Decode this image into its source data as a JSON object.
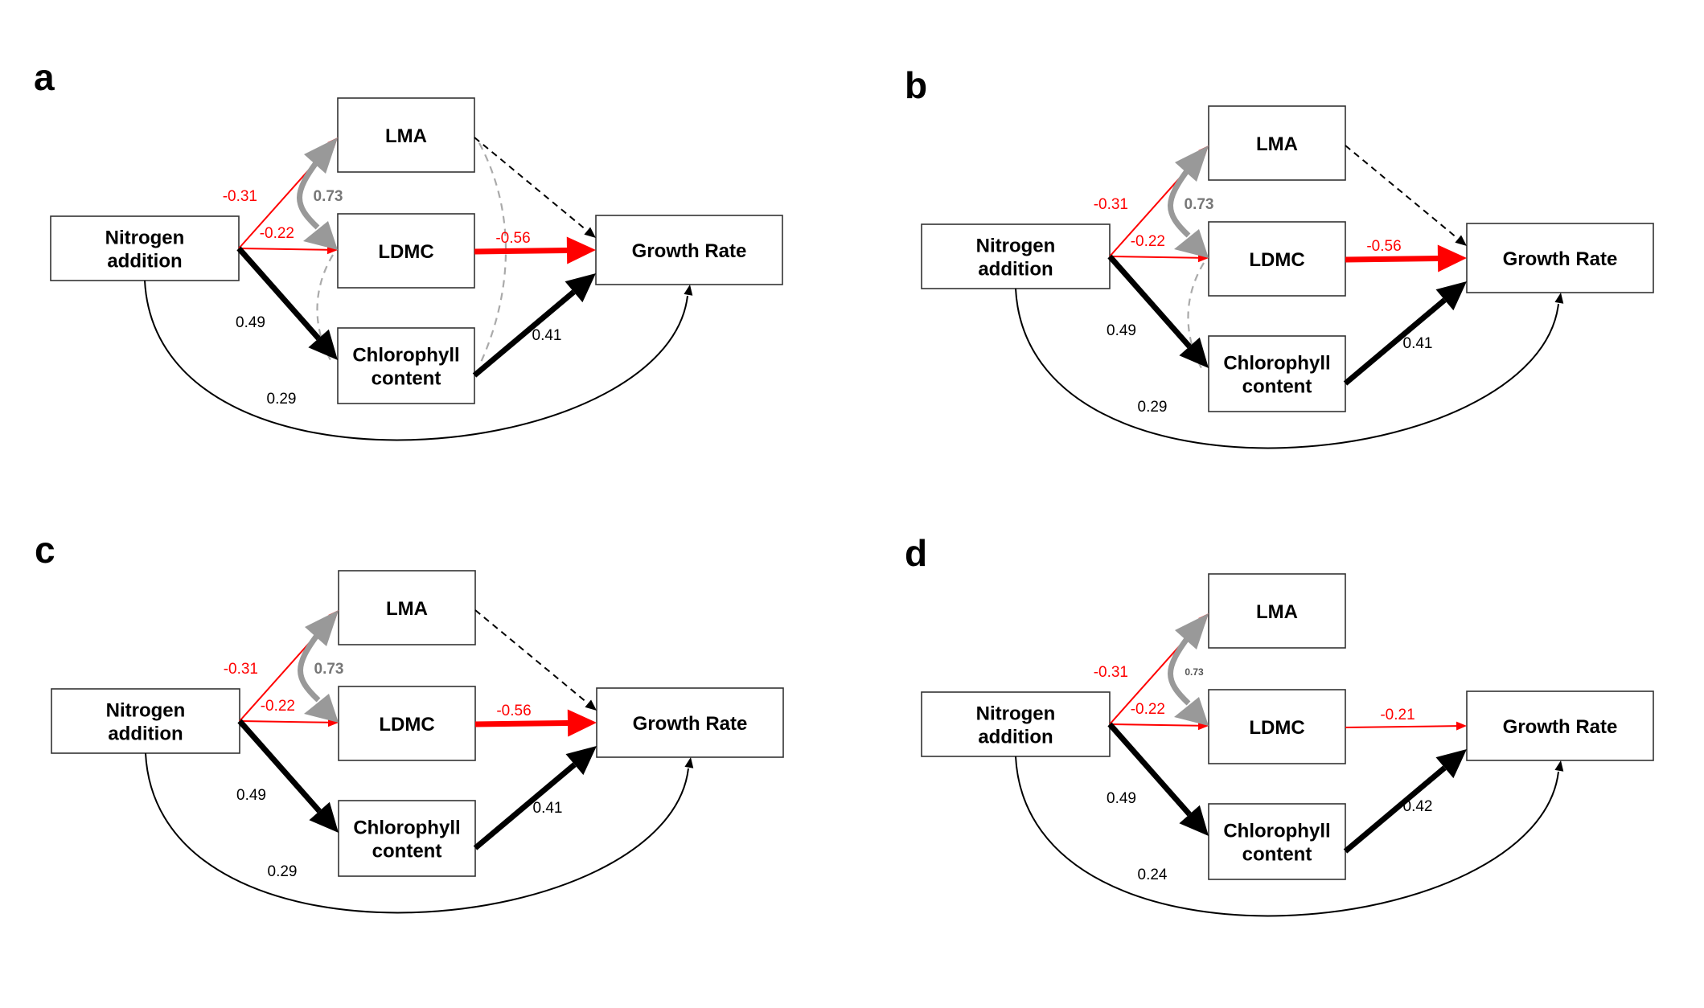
{
  "colors": {
    "negative": "#ff0000",
    "positive": "#000000",
    "correlation": "#999999",
    "nonsignificant": "#000000",
    "residual": "#aaaaaa"
  },
  "nodes": {
    "nitrogen": [
      "Nitrogen",
      "addition"
    ],
    "lma": [
      "LMA"
    ],
    "ldmc": [
      "LDMC"
    ],
    "chlorophyll": [
      "Chlorophyll",
      "content"
    ],
    "growth": [
      "Growth Rate"
    ]
  },
  "panels": [
    {
      "letter": "a",
      "residual_correlations": true,
      "paths": [
        {
          "from": "nitrogen",
          "to": "lma",
          "value": "-0.31",
          "sign": "negative",
          "weight": "thin"
        },
        {
          "from": "nitrogen",
          "to": "ldmc",
          "value": "-0.22",
          "sign": "negative",
          "weight": "thin"
        },
        {
          "from": "nitrogen",
          "to": "chlorophyll",
          "value": "0.49",
          "sign": "positive",
          "weight": "thick"
        },
        {
          "from": "nitrogen",
          "to": "growth",
          "value": "0.29",
          "sign": "positive",
          "weight": "thin"
        },
        {
          "from": "lma",
          "to": "growth",
          "value": "",
          "sign": "nonsignificant",
          "weight": "dashed"
        },
        {
          "from": "ldmc",
          "to": "growth",
          "value": "-0.56",
          "sign": "negative",
          "weight": "thick"
        },
        {
          "from": "chlorophyll",
          "to": "growth",
          "value": "0.41",
          "sign": "positive",
          "weight": "thick"
        },
        {
          "from": "lma",
          "to": "ldmc",
          "value": "0.73",
          "sign": "correlation",
          "weight": "thick"
        }
      ]
    },
    {
      "letter": "b",
      "residual_correlations": true,
      "paths": [
        {
          "from": "nitrogen",
          "to": "lma",
          "value": "-0.31",
          "sign": "negative",
          "weight": "thin"
        },
        {
          "from": "nitrogen",
          "to": "ldmc",
          "value": "-0.22",
          "sign": "negative",
          "weight": "thin"
        },
        {
          "from": "nitrogen",
          "to": "chlorophyll",
          "value": "0.49",
          "sign": "positive",
          "weight": "thick"
        },
        {
          "from": "nitrogen",
          "to": "growth",
          "value": "0.29",
          "sign": "positive",
          "weight": "thin"
        },
        {
          "from": "lma",
          "to": "growth",
          "value": "",
          "sign": "nonsignificant",
          "weight": "dashed"
        },
        {
          "from": "ldmc",
          "to": "growth",
          "value": "-0.56",
          "sign": "negative",
          "weight": "thick"
        },
        {
          "from": "chlorophyll",
          "to": "growth",
          "value": "0.41",
          "sign": "positive",
          "weight": "thick"
        },
        {
          "from": "lma",
          "to": "ldmc",
          "value": "0.73",
          "sign": "correlation",
          "weight": "thick"
        }
      ]
    },
    {
      "letter": "c",
      "residual_correlations": false,
      "paths": [
        {
          "from": "nitrogen",
          "to": "lma",
          "value": "-0.31",
          "sign": "negative",
          "weight": "thin"
        },
        {
          "from": "nitrogen",
          "to": "ldmc",
          "value": "-0.22",
          "sign": "negative",
          "weight": "thin"
        },
        {
          "from": "nitrogen",
          "to": "chlorophyll",
          "value": "0.49",
          "sign": "positive",
          "weight": "thick"
        },
        {
          "from": "nitrogen",
          "to": "growth",
          "value": "0.29",
          "sign": "positive",
          "weight": "thin"
        },
        {
          "from": "lma",
          "to": "growth",
          "value": "",
          "sign": "nonsignificant",
          "weight": "dashed"
        },
        {
          "from": "ldmc",
          "to": "growth",
          "value": "-0.56",
          "sign": "negative",
          "weight": "thick"
        },
        {
          "from": "chlorophyll",
          "to": "growth",
          "value": "0.41",
          "sign": "positive",
          "weight": "thick"
        },
        {
          "from": "lma",
          "to": "ldmc",
          "value": "0.73",
          "sign": "correlation",
          "weight": "thick"
        }
      ]
    },
    {
      "letter": "d",
      "residual_correlations": false,
      "paths": [
        {
          "from": "nitrogen",
          "to": "lma",
          "value": "-0.31",
          "sign": "negative",
          "weight": "thin"
        },
        {
          "from": "nitrogen",
          "to": "ldmc",
          "value": "-0.22",
          "sign": "negative",
          "weight": "thin"
        },
        {
          "from": "nitrogen",
          "to": "chlorophyll",
          "value": "0.49",
          "sign": "positive",
          "weight": "thick"
        },
        {
          "from": "nitrogen",
          "to": "growth",
          "value": "0.24",
          "sign": "positive",
          "weight": "thin"
        },
        {
          "from": "ldmc",
          "to": "growth",
          "value": "-0.21",
          "sign": "negative",
          "weight": "thin"
        },
        {
          "from": "chlorophyll",
          "to": "growth",
          "value": "0.42",
          "sign": "positive",
          "weight": "thick"
        },
        {
          "from": "lma",
          "to": "ldmc",
          "value": "0.73",
          "sign": "correlation",
          "weight": "thick"
        }
      ]
    }
  ]
}
